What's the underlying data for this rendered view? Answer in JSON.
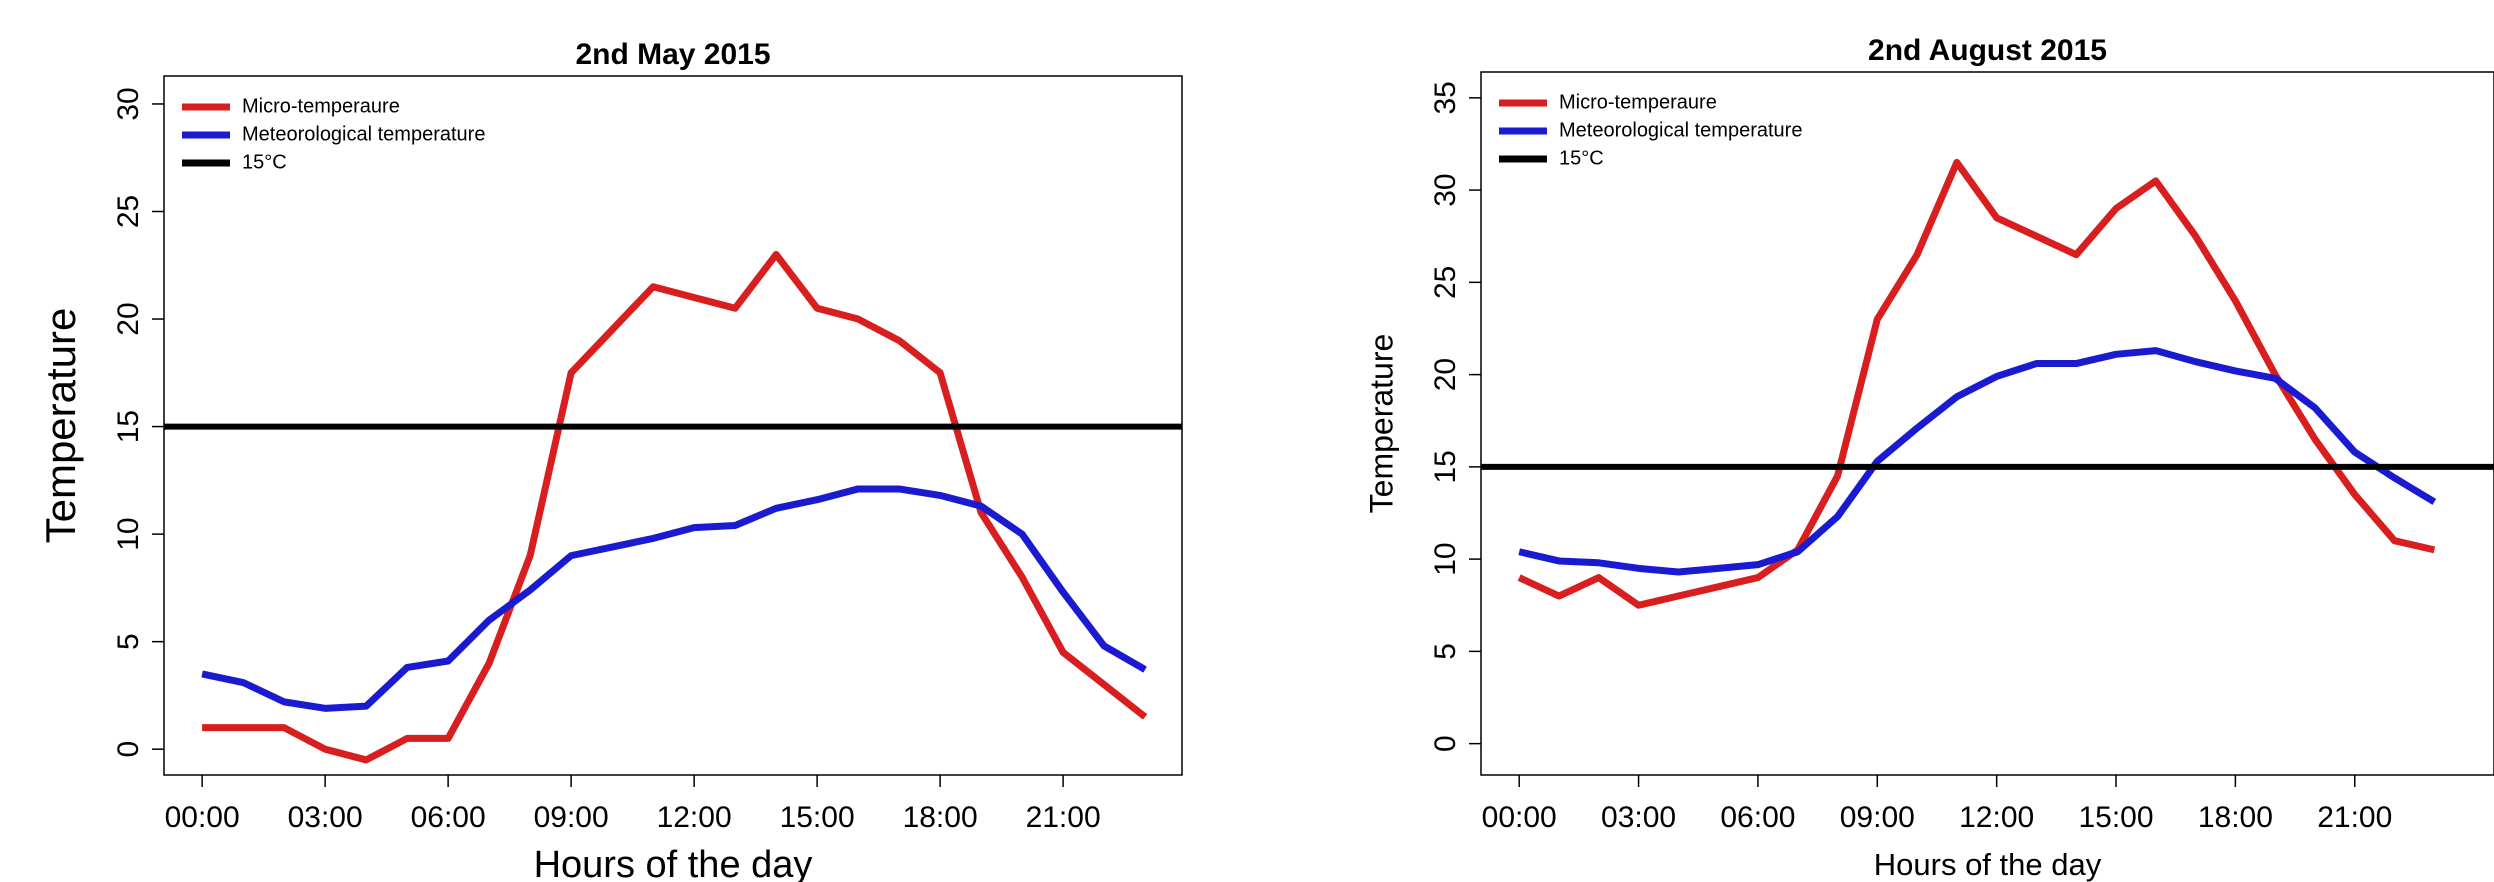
{
  "chart_data": [
    {
      "type": "line",
      "title": "2nd May 2015",
      "x_label": "Hours of the day",
      "y_label": "Temperature",
      "x": [
        0,
        1,
        2,
        3,
        4,
        5,
        6,
        7,
        8,
        9,
        10,
        11,
        12,
        13,
        14,
        15,
        16,
        17,
        18,
        19,
        20,
        21,
        22,
        23
      ],
      "xlim": [
        -0.93,
        23.9
      ],
      "xticks": [
        {
          "value": 0,
          "label": "00:00"
        },
        {
          "value": 3,
          "label": "03:00"
        },
        {
          "value": 6,
          "label": "06:00"
        },
        {
          "value": 9,
          "label": "09:00"
        },
        {
          "value": 12,
          "label": "12:00"
        },
        {
          "value": 15,
          "label": "15:00"
        },
        {
          "value": 18,
          "label": "18:00"
        },
        {
          "value": 21,
          "label": "21:00"
        }
      ],
      "ylim": [
        -1.2,
        31.3
      ],
      "yticks": [
        0,
        5,
        10,
        15,
        20,
        25,
        30
      ],
      "legend": "top-left",
      "series": [
        {
          "name": "Micro-temperaure",
          "color": "#d81e1e",
          "values": [
            1,
            1,
            1,
            0,
            -0.5,
            0.5,
            0.5,
            4,
            9,
            17.5,
            19.5,
            21.5,
            21,
            20.5,
            23,
            20.5,
            20,
            19,
            17.5,
            11,
            8,
            4.5,
            3,
            1.5
          ]
        },
        {
          "name": "Meteorological temperature",
          "color": "#1a1ad0",
          "values": [
            3.5,
            3.1,
            2.2,
            1.9,
            2.0,
            3.8,
            4.1,
            6,
            7.4,
            9,
            9.4,
            9.8,
            10.3,
            10.4,
            11.2,
            11.6,
            12.1,
            12.1,
            11.8,
            11.3,
            10,
            7.3,
            4.8,
            3.7
          ]
        },
        {
          "name": "15°C",
          "color": "#000000",
          "hline": 15
        }
      ]
    },
    {
      "type": "line",
      "title": "2nd August 2015",
      "x_label": "Hours of the day",
      "y_label": "Temperature",
      "x": [
        0,
        1,
        2,
        3,
        4,
        5,
        6,
        7,
        8,
        9,
        10,
        11,
        12,
        13,
        14,
        15,
        16,
        17,
        18,
        19,
        20,
        21,
        22,
        23
      ],
      "xlim": [
        -0.96,
        24.5
      ],
      "xticks": [
        {
          "value": 0,
          "label": "00:00"
        },
        {
          "value": 3,
          "label": "03:00"
        },
        {
          "value": 6,
          "label": "06:00"
        },
        {
          "value": 9,
          "label": "09:00"
        },
        {
          "value": 12,
          "label": "12:00"
        },
        {
          "value": 15,
          "label": "15:00"
        },
        {
          "value": 18,
          "label": "18:00"
        },
        {
          "value": 21,
          "label": "21:00"
        }
      ],
      "ylim": [
        -1.7,
        36.4
      ],
      "yticks": [
        0,
        5,
        10,
        15,
        20,
        25,
        30,
        35
      ],
      "legend": "top-left",
      "series": [
        {
          "name": "Micro-temperaure",
          "color": "#d81e1e",
          "values": [
            9,
            8,
            9,
            7.5,
            8,
            8.5,
            9,
            10.5,
            14.5,
            23,
            26.5,
            31.5,
            28.5,
            27.5,
            26.5,
            29,
            30.5,
            27.5,
            24,
            20,
            16.5,
            13.5,
            11,
            10.5
          ]
        },
        {
          "name": "Meteorological temperature",
          "color": "#1a1ad0",
          "values": [
            10.4,
            9.9,
            9.8,
            9.5,
            9.3,
            9.5,
            9.7,
            10.4,
            12.3,
            15.3,
            17.1,
            18.8,
            19.9,
            20.6,
            20.6,
            21.1,
            21.3,
            20.7,
            20.2,
            19.8,
            18.2,
            15.8,
            14.4,
            13.1
          ]
        },
        {
          "name": "15°C",
          "color": "#000000",
          "hline": 15
        }
      ]
    }
  ]
}
